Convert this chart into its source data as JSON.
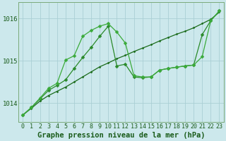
{
  "xlabel": "Graphe pression niveau de la mer (hPa)",
  "hours": [
    0,
    1,
    2,
    3,
    4,
    5,
    6,
    7,
    8,
    9,
    10,
    11,
    12,
    13,
    14,
    15,
    16,
    17,
    18,
    19,
    20,
    21,
    22,
    23
  ],
  "line1": [
    1013.72,
    1013.88,
    1014.05,
    1014.18,
    1014.28,
    1014.38,
    1014.5,
    1014.62,
    1014.74,
    1014.86,
    1014.95,
    1015.05,
    1015.13,
    1015.22,
    1015.3,
    1015.38,
    1015.47,
    1015.55,
    1015.63,
    1015.7,
    1015.78,
    1015.88,
    1015.98,
    1016.15
  ],
  "line2": [
    1013.72,
    1013.9,
    1014.1,
    1014.3,
    1014.42,
    1014.55,
    1014.82,
    1015.08,
    1015.32,
    1015.58,
    1015.82,
    1014.88,
    1014.92,
    1014.62,
    1014.6,
    1014.62,
    1014.78,
    1014.82,
    1014.85,
    1014.88,
    1014.9,
    1015.62,
    1015.95,
    1016.18
  ],
  "line3": [
    1013.72,
    1013.9,
    1014.12,
    1014.35,
    1014.47,
    1015.02,
    1015.12,
    1015.58,
    1015.72,
    1015.82,
    1015.88,
    1015.68,
    1015.42,
    1014.65,
    1014.62,
    1014.62,
    1014.78,
    1014.82,
    1014.85,
    1014.88,
    1014.9,
    1015.1,
    1015.95,
    1016.18
  ],
  "ylim_min": 1013.55,
  "ylim_max": 1016.38,
  "yticks": [
    1014,
    1015,
    1016
  ],
  "bg_color": "#cce8ec",
  "grid_color": "#aacfd5",
  "line_color1": "#1a6b1a",
  "line_color2": "#2a8a2a",
  "line_color3": "#3aaa3a",
  "marker": "D",
  "markersize_l1": 1.5,
  "markersize_l2": 2.5,
  "markersize_l3": 2.5,
  "label_color": "#1a5c1a",
  "xlabel_fontsize": 7.5,
  "tick_fontsize": 6.5
}
